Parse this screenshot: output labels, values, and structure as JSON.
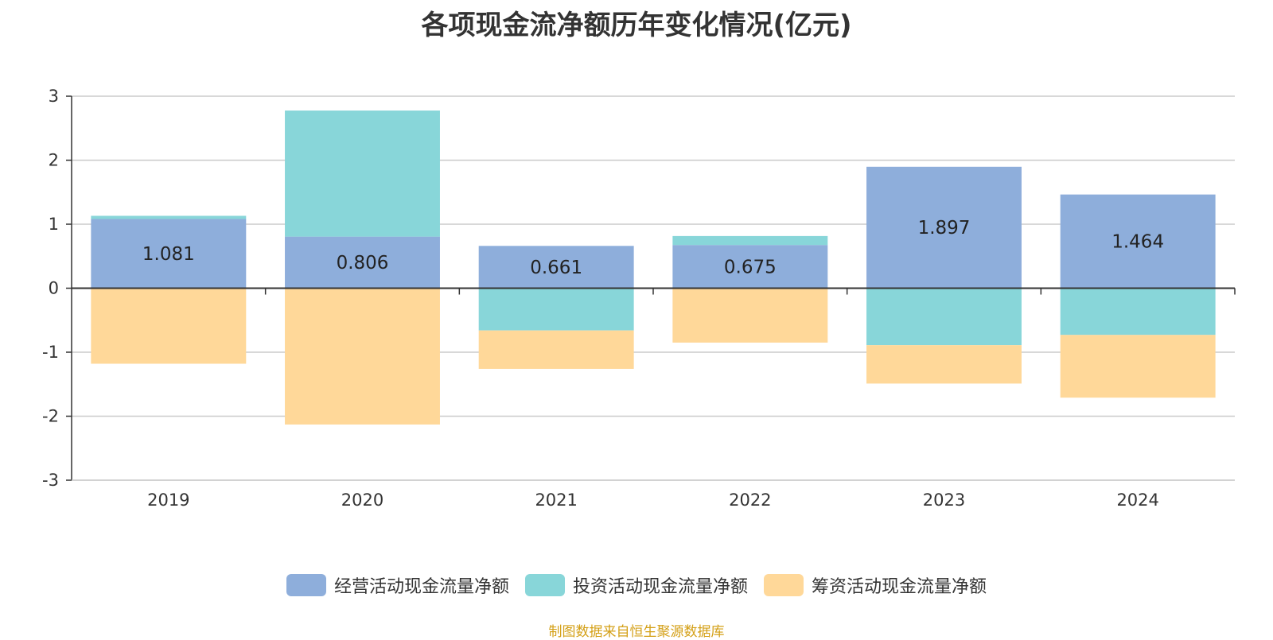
{
  "chart_data": {
    "type": "bar",
    "stacked": true,
    "title": "各项现金流净额历年变化情况(亿元)",
    "categories": [
      "2019",
      "2020",
      "2021",
      "2022",
      "2023",
      "2024"
    ],
    "ylim": [
      -3,
      3
    ],
    "yticks": [
      3,
      2,
      1,
      0,
      -1,
      -2,
      -3
    ],
    "grid": true,
    "legend_position": "bottom-center",
    "series": [
      {
        "name": "经营活动现金流量净额",
        "color": "#8eaedb",
        "values": [
          1.081,
          0.806,
          0.661,
          0.675,
          1.897,
          1.464
        ],
        "labels": [
          "1.081",
          "0.806",
          "0.661",
          "0.675",
          "1.897",
          "1.464"
        ]
      },
      {
        "name": "投资活动现金流量净额",
        "color": "#88d6d9",
        "values": [
          0.05,
          1.97,
          -0.66,
          0.14,
          -0.89,
          -0.73
        ]
      },
      {
        "name": "筹资活动现金流量净额",
        "color": "#ffd899",
        "values": [
          -1.18,
          -2.13,
          -0.6,
          -0.85,
          -0.6,
          -0.98
        ]
      }
    ]
  },
  "source_note": "制图数据来自恒生聚源数据库"
}
